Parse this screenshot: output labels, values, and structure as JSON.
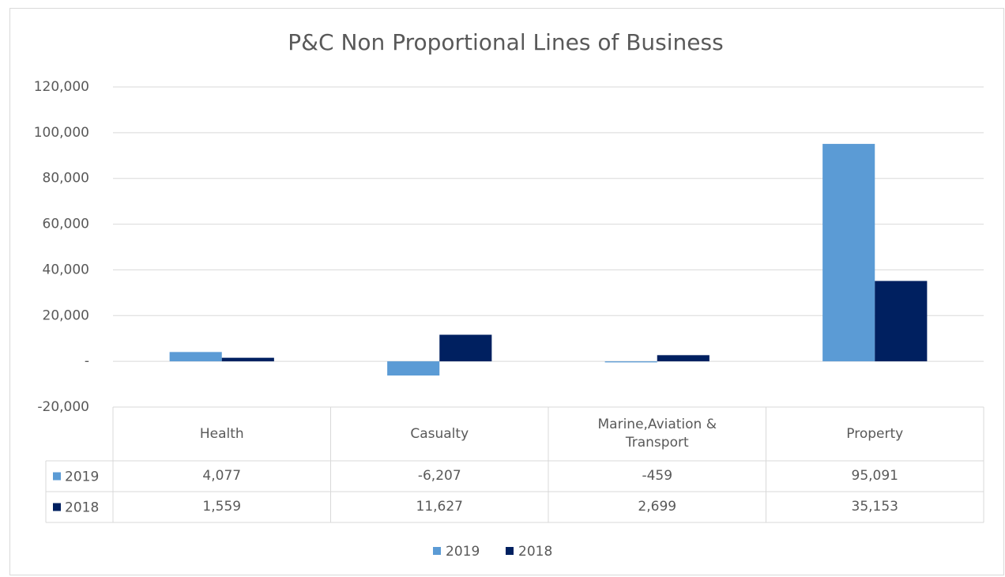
{
  "chart_data": {
    "type": "bar",
    "title": "P&C Non Proportional Lines of Business",
    "categories": [
      "Health",
      "Casualty",
      "Marine,Aviation & Transport",
      "Property"
    ],
    "series": [
      {
        "name": "2019",
        "color": "#5b9bd5",
        "values": [
          4077,
          -6207,
          -459,
          95091
        ],
        "value_labels": [
          "4,077",
          "-6,207",
          "-459",
          "95,091"
        ]
      },
      {
        "name": "2018",
        "color": "#002060",
        "values": [
          1559,
          11627,
          2699,
          35153
        ],
        "value_labels": [
          "1,559",
          "11,627",
          "2,699",
          "35,153"
        ]
      }
    ],
    "ylim": [
      -20000,
      120000
    ],
    "yticks": [
      {
        "value": -20000,
        "label": "-20,000"
      },
      {
        "value": 0,
        "label": "-"
      },
      {
        "value": 20000,
        "label": "20,000"
      },
      {
        "value": 40000,
        "label": "40,000"
      },
      {
        "value": 60000,
        "label": "60,000"
      },
      {
        "value": 80000,
        "label": "80,000"
      },
      {
        "value": 100000,
        "label": "100,000"
      },
      {
        "value": 120000,
        "label": "120,000"
      }
    ],
    "grid": true,
    "legend": "bottom",
    "data_table": true
  }
}
